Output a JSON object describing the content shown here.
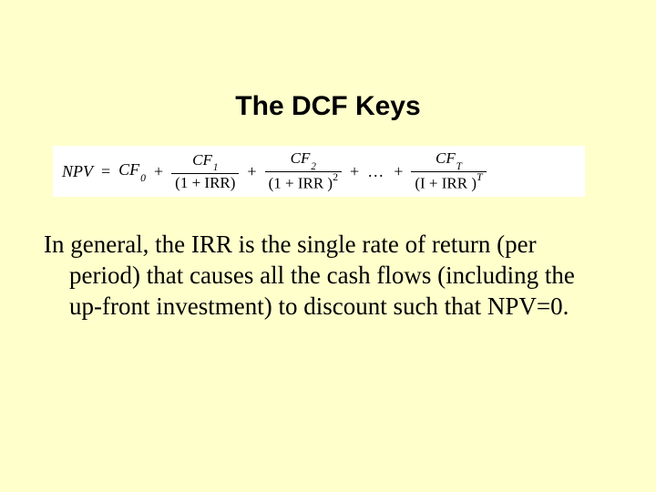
{
  "background_color": "#ffffcc",
  "formula_box_bg": "#ffffff",
  "title": {
    "text": "The DCF Keys",
    "font_family": "Arial",
    "font_size_pt": 22,
    "color": "#000000"
  },
  "formula": {
    "lhs": "NPV",
    "eq": "=",
    "terms": [
      {
        "type": "plain",
        "num_sym": "CF",
        "num_sub": "0"
      },
      {
        "type": "frac",
        "num_sym": "CF",
        "num_sub": "1",
        "den_base": "(1 + IRR)",
        "den_exp": ""
      },
      {
        "type": "frac",
        "num_sym": "CF",
        "num_sub": "2",
        "den_base": "(1 + IRR )",
        "den_exp": "2"
      },
      {
        "type": "dots",
        "text": "…"
      },
      {
        "type": "frac",
        "num_sym": "CF",
        "num_sub": "T",
        "den_base": "(I + IRR )",
        "den_exp": "T"
      }
    ],
    "plus": "+",
    "font_size_pt": 13,
    "color": "#000000"
  },
  "body": {
    "text": "In general, the IRR is the single rate of return (per period) that causes all the cash flows (including the up-front investment) to discount such that NPV=0.",
    "font_family": "Times New Roman",
    "font_size_pt": 20,
    "color": "#000000"
  }
}
